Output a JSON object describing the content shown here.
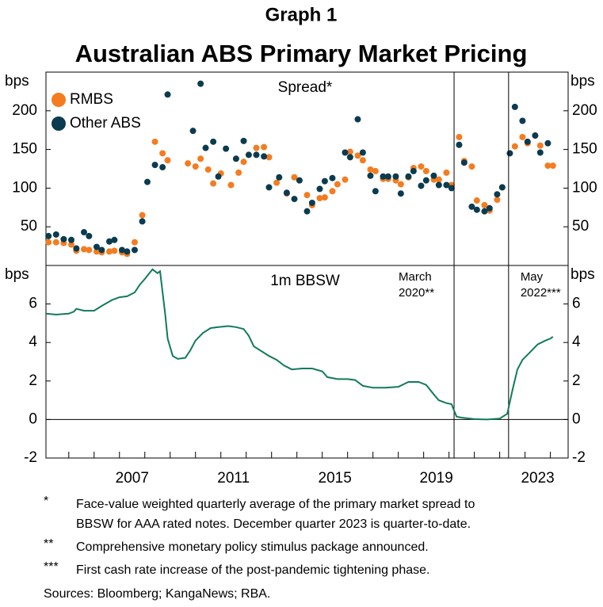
{
  "header": {
    "label": "Graph 1",
    "title": "Australian ABS Primary Market Pricing"
  },
  "chart_data": [
    {
      "type": "scatter",
      "title": "Spread*",
      "ylabel": "bps",
      "xlim": [
        2004.1,
        2024.7
      ],
      "ylim": [
        0,
        250
      ],
      "yticks": [
        50,
        100,
        150,
        200
      ],
      "legend": "top-left",
      "series": [
        {
          "name": "RMBS",
          "color": "#f47c20",
          "x": [
            2004.2,
            2004.5,
            2004.8,
            2005.1,
            2005.3,
            2005.6,
            2005.8,
            2006.1,
            2006.3,
            2006.6,
            2006.8,
            2007.1,
            2007.3,
            2007.6,
            2007.9,
            2008.4,
            2008.7,
            2008.9,
            2009.7,
            2010.0,
            2010.2,
            2010.5,
            2010.7,
            2011.0,
            2011.4,
            2011.7,
            2011.9,
            2012.4,
            2012.7,
            2012.9,
            2013.2,
            2013.6,
            2013.9,
            2014.4,
            2014.6,
            2014.9,
            2015.1,
            2015.4,
            2015.6,
            2015.9,
            2016.1,
            2016.4,
            2016.6,
            2016.9,
            2017.1,
            2017.4,
            2017.6,
            2017.9,
            2018.1,
            2018.4,
            2018.6,
            2018.9,
            2019.1,
            2019.4,
            2019.6,
            2019.9,
            2020.1,
            2020.4,
            2020.6,
            2020.9,
            2021.1,
            2021.4,
            2021.6,
            2021.9,
            2022.1,
            2022.6,
            2022.9,
            2023.1,
            2023.4,
            2023.6,
            2023.9,
            2024.1
          ],
          "values": [
            30,
            30,
            29,
            27,
            19,
            21,
            20,
            18,
            17,
            18,
            19,
            17,
            15,
            30,
            65,
            160,
            145,
            136,
            132,
            128,
            138,
            124,
            106,
            119,
            104,
            120,
            134,
            152,
            153,
            140,
            107,
            93,
            114,
            91,
            78,
            87,
            88,
            96,
            105,
            111,
            147,
            142,
            136,
            124,
            122,
            112,
            112,
            110,
            105,
            114,
            126,
            128,
            122,
            111,
            111,
            120,
            104,
            166,
            135,
            128,
            84,
            78,
            71,
            85,
            101,
            154,
            166,
            158,
            168,
            155,
            129,
            129
          ]
        },
        {
          "name": "Other ABS",
          "color": "#0b3b4f",
          "x": [
            2004.2,
            2004.5,
            2004.8,
            2005.1,
            2005.3,
            2005.6,
            2005.8,
            2006.1,
            2006.3,
            2006.6,
            2006.8,
            2007.1,
            2007.3,
            2007.6,
            2007.9,
            2008.1,
            2008.4,
            2008.7,
            2008.9,
            2009.9,
            2010.2,
            2010.4,
            2010.7,
            2010.9,
            2011.2,
            2011.6,
            2011.9,
            2012.1,
            2012.4,
            2012.7,
            2012.9,
            2013.3,
            2013.6,
            2013.9,
            2014.1,
            2014.4,
            2014.6,
            2014.9,
            2015.1,
            2015.4,
            2015.9,
            2016.1,
            2016.4,
            2016.6,
            2016.9,
            2017.1,
            2017.4,
            2017.6,
            2017.9,
            2018.1,
            2018.4,
            2018.6,
            2018.9,
            2019.1,
            2019.4,
            2019.6,
            2019.9,
            2020.1,
            2020.4,
            2020.6,
            2020.9,
            2021.1,
            2021.4,
            2021.6,
            2021.9,
            2022.1,
            2022.4,
            2022.6,
            2022.9,
            2023.1,
            2023.4,
            2023.6,
            2023.9
          ],
          "values": [
            38,
            40,
            34,
            33,
            22,
            43,
            38,
            24,
            20,
            31,
            33,
            20,
            18,
            20,
            57,
            108,
            130,
            127,
            221,
            174,
            235,
            152,
            160,
            115,
            151,
            138,
            161,
            143,
            143,
            141,
            101,
            114,
            94,
            86,
            110,
            70,
            81,
            99,
            109,
            113,
            146,
            140,
            189,
            146,
            116,
            96,
            115,
            115,
            115,
            93,
            115,
            122,
            103,
            110,
            116,
            104,
            104,
            100,
            156,
            133,
            76,
            72,
            70,
            74,
            92,
            101,
            145,
            205,
            187,
            160,
            168,
            146,
            158
          ]
        }
      ]
    },
    {
      "type": "line",
      "title": "1m BBSW",
      "ylabel": "bps",
      "color": "#127a5c",
      "xlim": [
        2004.1,
        2024.7
      ],
      "ylim": [
        -2,
        8
      ],
      "yticks": [
        -2,
        0,
        2,
        4,
        6
      ],
      "xticks": [
        {
          "value": 2007.5,
          "label": "2007"
        },
        {
          "value": 2011.5,
          "label": "2011"
        },
        {
          "value": 2015.5,
          "label": "2015"
        },
        {
          "value": 2019.5,
          "label": "2019"
        },
        {
          "value": 2023.5,
          "label": "2023"
        }
      ],
      "xticks_minor": [
        2005,
        2006,
        2007,
        2008,
        2009,
        2010,
        2011,
        2012,
        2013,
        2014,
        2015,
        2016,
        2017,
        2018,
        2019,
        2020,
        2021,
        2022,
        2023,
        2024
      ],
      "events": [
        {
          "x": 2020.2,
          "label": [
            "March",
            "2020**"
          ]
        },
        {
          "x": 2022.35,
          "label": [
            "May",
            "2022***"
          ]
        }
      ],
      "x": [
        2004.1,
        2004.5,
        2005.0,
        2005.2,
        2005.3,
        2005.6,
        2006.0,
        2006.3,
        2006.5,
        2006.7,
        2007.0,
        2007.3,
        2007.6,
        2007.8,
        2008.0,
        2008.3,
        2008.5,
        2008.6,
        2008.8,
        2008.9,
        2009.1,
        2009.3,
        2009.6,
        2009.8,
        2010.0,
        2010.3,
        2010.6,
        2010.9,
        2011.3,
        2011.6,
        2011.9,
        2012.1,
        2012.3,
        2012.6,
        2012.9,
        2013.2,
        2013.5,
        2013.8,
        2014.2,
        2014.6,
        2015.0,
        2015.2,
        2015.6,
        2016.0,
        2016.3,
        2016.6,
        2017.0,
        2017.5,
        2018.0,
        2018.4,
        2018.8,
        2019.1,
        2019.4,
        2019.6,
        2019.9,
        2020.1,
        2020.3,
        2020.5,
        2021.0,
        2021.5,
        2022.0,
        2022.3,
        2022.5,
        2022.7,
        2022.9,
        2023.2,
        2023.5,
        2023.8,
        2024.0,
        2024.1
      ],
      "values": [
        5.5,
        5.45,
        5.5,
        5.6,
        5.75,
        5.65,
        5.65,
        5.9,
        6.05,
        6.2,
        6.35,
        6.4,
        6.6,
        7.0,
        7.3,
        7.8,
        7.6,
        7.7,
        5.5,
        4.2,
        3.3,
        3.15,
        3.2,
        3.6,
        4.1,
        4.5,
        4.75,
        4.8,
        4.85,
        4.8,
        4.7,
        4.35,
        3.8,
        3.55,
        3.3,
        3.1,
        2.8,
        2.6,
        2.65,
        2.65,
        2.5,
        2.2,
        2.1,
        2.1,
        2.05,
        1.75,
        1.65,
        1.65,
        1.7,
        1.95,
        1.95,
        1.8,
        1.3,
        1.0,
        0.85,
        0.8,
        0.15,
        0.1,
        0.02,
        0.0,
        0.05,
        0.3,
        1.5,
        2.6,
        3.1,
        3.5,
        3.9,
        4.1,
        4.2,
        4.3
      ]
    }
  ],
  "footnotes": [
    {
      "marker": "*",
      "lines": [
        "Face-value weighted quarterly average of the primary market spread to",
        "BBSW for AAA rated notes. December quarter 2023 is quarter-to-date."
      ]
    },
    {
      "marker": "**",
      "lines": [
        "Comprehensive monetary policy stimulus package announced."
      ]
    },
    {
      "marker": "***",
      "lines": [
        "First cash rate increase of the post-pandemic tightening phase."
      ]
    }
  ],
  "sources": "Sources: Bloomberg; KangaNews; RBA."
}
